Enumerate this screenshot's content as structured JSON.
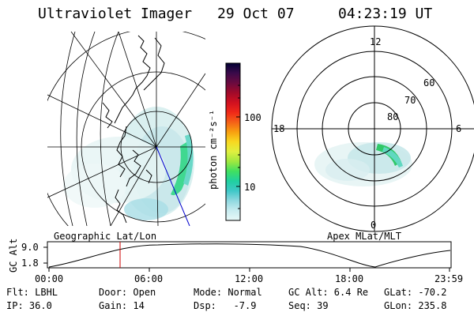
{
  "header": {
    "title": "Ultraviolet Imager",
    "date": "29 Oct 07",
    "time": "04:23:19 UT"
  },
  "colorbar": {
    "unit_label": "photon cm⁻²s⁻¹",
    "tick_labels": [
      "100",
      "10"
    ],
    "scale": "log",
    "colors": [
      "#000033",
      "#3a0a4a",
      "#6a0a40",
      "#a00a2a",
      "#d01020",
      "#f02818",
      "#f46018",
      "#f8a010",
      "#f8d820",
      "#e0f040",
      "#a0e840",
      "#40e060",
      "#20d0a0",
      "#40c8c8",
      "#90d8e0",
      "#c8ecf0",
      "#e8f8f8"
    ]
  },
  "left_panel": {
    "label": "Geographic Lat/Lon"
  },
  "right_panel": {
    "label": "Apex MLat/MLT",
    "mlt_labels": {
      "top": "12",
      "left": "18",
      "right": "6",
      "bottom": "0"
    },
    "lat_labels": [
      "60",
      "70",
      "80"
    ]
  },
  "timeline": {
    "axis_label": "GC Alt",
    "y_ticks": [
      "9.0",
      "1.8"
    ],
    "x_ticks": [
      "00:00",
      "06:00",
      "12:00",
      "18:00",
      "23:59"
    ],
    "marker_time": "04:23"
  },
  "footer": {
    "rows": [
      [
        "Flt: LBHL",
        "Door: Open",
        "Mode: Normal",
        "GC Alt: 6.4 Re",
        "GLat: -70.2"
      ],
      [
        "IP: 36.0",
        "Gain: 14",
        "Dsp:   -7.9",
        "Seq: 39",
        "GLon: 235.8"
      ]
    ]
  },
  "colors": {
    "marker": "#cc0000",
    "blue_line": "#0000cc",
    "aurora_green": "#20c060"
  }
}
